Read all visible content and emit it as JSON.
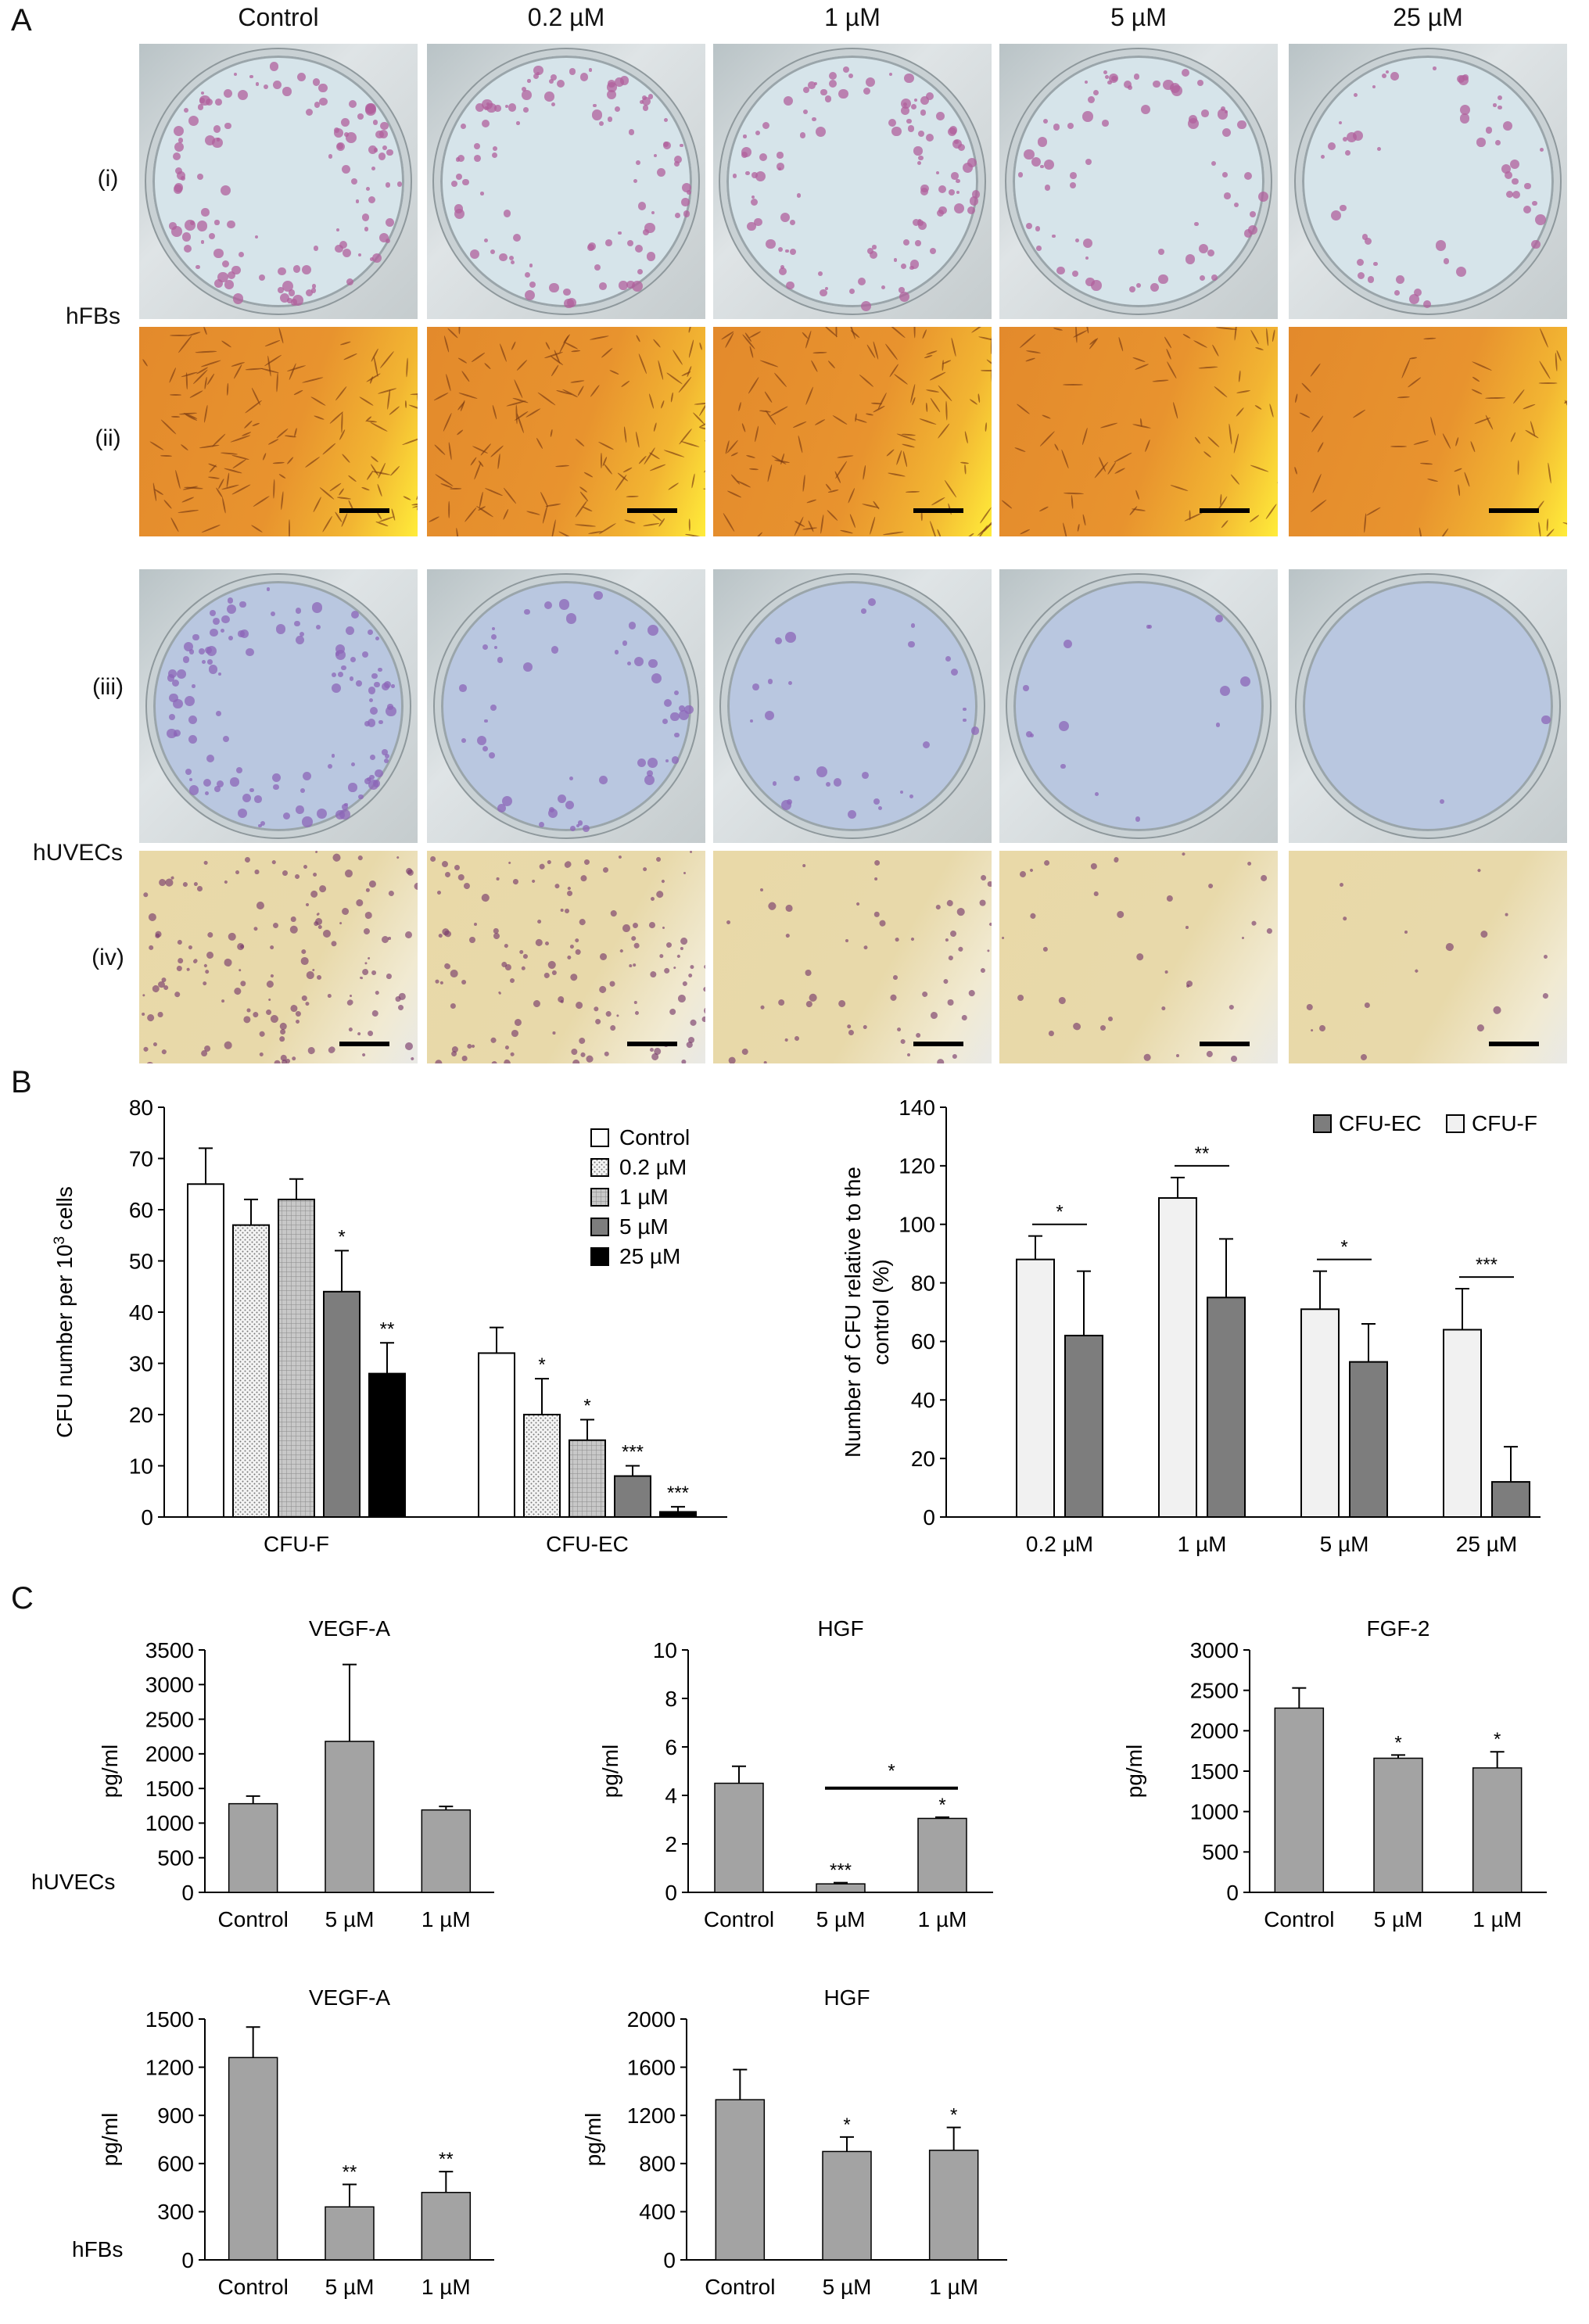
{
  "panels": {
    "a": "A",
    "b": "B",
    "c": "C"
  },
  "panel_a": {
    "columns": [
      "Control",
      "0.2 µM",
      "1 µM",
      "5 µM",
      "25 µM"
    ],
    "row_labels": [
      "(i)",
      "(ii)",
      "(iii)",
      "(iv)"
    ],
    "cell_labels": [
      "hFBs",
      "hUVECs"
    ],
    "colors": {
      "crystal_violet_fb": "#b0609c",
      "crystal_violet_ec": "#8c66b8",
      "micro_orange": "#e38a2c",
      "micro_yellow": "#ffec3a",
      "micro_beige": "#e9d9a8"
    }
  },
  "chart_data": [
    {
      "id": "b-left",
      "type": "bar",
      "categories": [
        "CFU-F",
        "CFU-EC"
      ],
      "series": [
        {
          "name": "Control",
          "values": [
            65,
            32
          ],
          "errors": [
            7,
            5
          ],
          "fill": "#ffffff",
          "pattern": "none"
        },
        {
          "name": "0.2 µM",
          "values": [
            57,
            20
          ],
          "errors": [
            5,
            7
          ],
          "fill": "#f2f2f2",
          "pattern": "dots"
        },
        {
          "name": "1 µM",
          "values": [
            62,
            15
          ],
          "errors": [
            4,
            4
          ],
          "fill": "#cfcfcf",
          "pattern": "grid"
        },
        {
          "name": "5 µM",
          "values": [
            44,
            8
          ],
          "errors": [
            8,
            2
          ],
          "fill": "#7d7d7d",
          "pattern": "none"
        },
        {
          "name": "25 µM",
          "values": [
            28,
            1
          ],
          "errors": [
            6,
            1
          ],
          "fill": "#000000",
          "pattern": "none"
        }
      ],
      "significance": [
        [
          "",
          "",
          "",
          "*",
          "**"
        ],
        [
          "",
          "*",
          "*",
          "***",
          "***"
        ]
      ],
      "ylabel_main": "CFU number per 10",
      "ylabel_sup": "3",
      "ylabel_tail": " cells",
      "ylim": [
        0,
        80
      ],
      "yticks": [
        0,
        10,
        20,
        30,
        40,
        50,
        60,
        70,
        80
      ],
      "legend_position": "top-right"
    },
    {
      "id": "b-right",
      "type": "bar",
      "categories": [
        "0.2 µM",
        "1 µM",
        "5 µM",
        "25 µM"
      ],
      "series": [
        {
          "name": "CFU-F",
          "values": [
            88,
            109,
            71,
            64
          ],
          "errors": [
            8,
            7,
            13,
            14
          ],
          "fill": "#f1f1f1"
        },
        {
          "name": "CFU-EC",
          "values": [
            62,
            75,
            53,
            12
          ],
          "errors": [
            22,
            20,
            13,
            12
          ],
          "fill": "#7d7d7d"
        }
      ],
      "legend_order": [
        "CFU-EC",
        "CFU-F"
      ],
      "comparisons": [
        "*",
        "**",
        "*",
        "***"
      ],
      "ylabel_lines": [
        "Number of CFU relative to the",
        "control (%)"
      ],
      "ylim": [
        0,
        140
      ],
      "yticks": [
        0,
        20,
        40,
        60,
        80,
        100,
        120,
        140
      ],
      "legend_position": "top-right"
    },
    {
      "id": "c-vegf-huvec",
      "type": "bar",
      "title": "VEGF-A",
      "ylabel": "pg/ml",
      "row_label": "hUVECs",
      "categories": [
        "Control",
        "5 µM",
        "1 µM"
      ],
      "values": [
        1280,
        2180,
        1190
      ],
      "errors": [
        110,
        1110,
        50
      ],
      "significance": [
        "",
        "",
        ""
      ],
      "ylim": [
        0,
        3500
      ],
      "yticks": [
        0,
        500,
        1000,
        1500,
        2000,
        2500,
        3000,
        3500
      ]
    },
    {
      "id": "c-hgf-huvec",
      "type": "bar",
      "title": "HGF",
      "ylabel": "pg/ml",
      "categories": [
        "Control",
        "5 µM",
        "1 µM"
      ],
      "values": [
        4.5,
        0.35,
        3.05
      ],
      "errors": [
        0.7,
        0.05,
        0.05
      ],
      "significance": [
        "",
        "***",
        "*"
      ],
      "bracket": {
        "from": 1,
        "to": 2,
        "label": "*",
        "y": 4.3
      },
      "ylim": [
        0,
        10
      ],
      "yticks": [
        0,
        2,
        4,
        6,
        8,
        10
      ]
    },
    {
      "id": "c-fgf2-huvec",
      "type": "bar",
      "title": "FGF-2",
      "ylabel": "pg/ml",
      "categories": [
        "Control",
        "5 µM",
        "1 µM"
      ],
      "values": [
        2280,
        1660,
        1540
      ],
      "errors": [
        250,
        40,
        200
      ],
      "significance": [
        "",
        "*",
        "*"
      ],
      "ylim": [
        0,
        3000
      ],
      "yticks": [
        0,
        500,
        1000,
        1500,
        2000,
        2500,
        3000
      ]
    },
    {
      "id": "c-vegf-hfb",
      "type": "bar",
      "title": "VEGF-A",
      "ylabel": "pg/ml",
      "row_label": "hFBs",
      "categories": [
        "Control",
        "5 µM",
        "1 µM"
      ],
      "values": [
        1260,
        330,
        420
      ],
      "errors": [
        190,
        140,
        130
      ],
      "significance": [
        "",
        "**",
        "**"
      ],
      "ylim": [
        0,
        1500
      ],
      "yticks": [
        0,
        300,
        600,
        900,
        1200,
        1500
      ]
    },
    {
      "id": "c-hgf-hfb",
      "type": "bar",
      "title": "HGF",
      "ylabel": "pg/ml",
      "categories": [
        "Control",
        "5 µM",
        "1 µM"
      ],
      "values": [
        1330,
        900,
        910
      ],
      "errors": [
        250,
        120,
        190
      ],
      "significance": [
        "",
        "*",
        "*"
      ],
      "ylim": [
        0,
        2000
      ],
      "yticks": [
        0,
        400,
        800,
        1200,
        1600,
        2000
      ]
    }
  ]
}
